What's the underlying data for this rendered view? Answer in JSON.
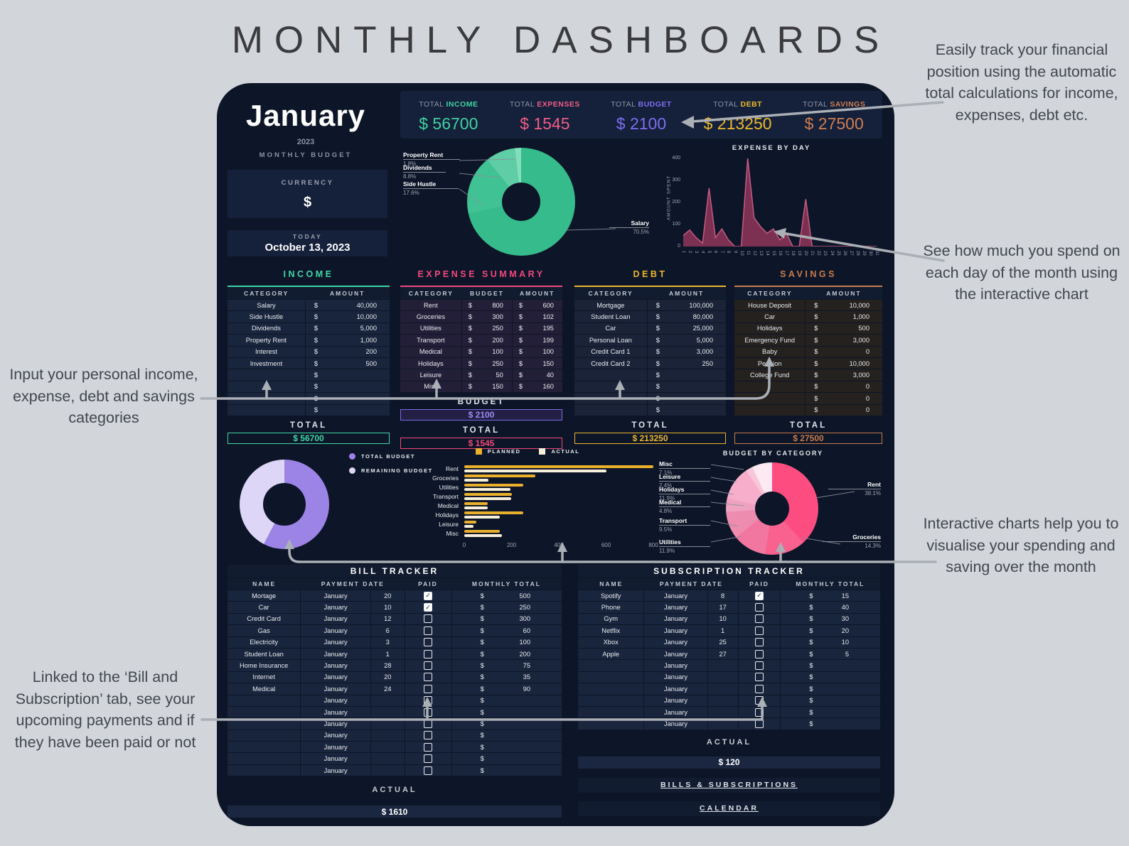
{
  "page": {
    "title": "MONTHLY DASHBOARDS"
  },
  "annotations": {
    "top_right": "Easily track your financial position using the automatic total calculations for income, expenses, debt etc.",
    "mid_right": "See how much you spend on each day of the month using the interactive chart",
    "bottom_right": "Interactive charts help you to visualise your spending and saving over the month",
    "mid_left": "Input your personal income, expense, debt and savings categories",
    "bottom_left": "Linked to the ‘Bill and Subscription’ tab, see your upcoming payments and if they have been paid or not"
  },
  "header": {
    "month": "January",
    "year": "2023",
    "subtitle": "MONTHLY BUDGET",
    "stats": [
      {
        "label_prefix": "TOTAL ",
        "label": "INCOME",
        "value": "$ 56700",
        "color": "#3fd3a0"
      },
      {
        "label_prefix": "TOTAL ",
        "label": "EXPENSES",
        "value": "$ 1545",
        "color": "#ef5d87"
      },
      {
        "label_prefix": "TOTAL ",
        "label": "BUDGET",
        "value": "$ 2100",
        "color": "#7d6ef0"
      },
      {
        "label_prefix": "TOTAL ",
        "label": "DEBT",
        "value": "$ 213250",
        "color": "#ecba2d"
      },
      {
        "label_prefix": "TOTAL ",
        "label": "SAVINGS",
        "value": "$ 27500",
        "color": "#cd7f52"
      }
    ]
  },
  "currency": {
    "label": "CURRENCY",
    "value": "$"
  },
  "today": {
    "label": "TODAY",
    "value": "October 13, 2023"
  },
  "income": {
    "title": "INCOME",
    "headers": [
      "CATEGORY",
      "AMOUNT"
    ],
    "rows": [
      {
        "category": "Salary",
        "amount": "40,000"
      },
      {
        "category": "Side Hustle",
        "amount": "10,000"
      },
      {
        "category": "Dividends",
        "amount": "5,000"
      },
      {
        "category": "Property Rent",
        "amount": "1,000"
      },
      {
        "category": "Interest",
        "amount": "200"
      },
      {
        "category": "Investment",
        "amount": "500"
      },
      {
        "category": "",
        "amount": ""
      },
      {
        "category": "",
        "amount": ""
      },
      {
        "category": "",
        "amount": ""
      },
      {
        "category": "",
        "amount": ""
      }
    ],
    "total_label": "TOTAL",
    "total": "$ 56700"
  },
  "expense": {
    "title": "EXPENSE SUMMARY",
    "headers": [
      "CATEGORY",
      "BUDGET",
      "AMOUNT"
    ],
    "rows": [
      {
        "category": "Rent",
        "budget": "800",
        "amount": "600"
      },
      {
        "category": "Groceries",
        "budget": "300",
        "amount": "102"
      },
      {
        "category": "Utilities",
        "budget": "250",
        "amount": "195"
      },
      {
        "category": "Transport",
        "budget": "200",
        "amount": "199"
      },
      {
        "category": "Medical",
        "budget": "100",
        "amount": "100"
      },
      {
        "category": "Holidays",
        "budget": "250",
        "amount": "150"
      },
      {
        "category": "Leisure",
        "budget": "50",
        "amount": "40"
      },
      {
        "category": "Misc",
        "budget": "150",
        "amount": "160"
      }
    ],
    "budget_label": "BUDGET",
    "budget": "$ 2100",
    "total_label": "TOTAL",
    "total": "$ 1545"
  },
  "debt": {
    "title": "DEBT",
    "headers": [
      "CATEGORY",
      "AMOUNT"
    ],
    "rows": [
      {
        "category": "Mortgage",
        "amount": "100,000"
      },
      {
        "category": "Student Loan",
        "amount": "80,000"
      },
      {
        "category": "Car",
        "amount": "25,000"
      },
      {
        "category": "Personal Loan",
        "amount": "5,000"
      },
      {
        "category": "Credit Card 1",
        "amount": "3,000"
      },
      {
        "category": "Credit Card 2",
        "amount": "250"
      },
      {
        "category": "",
        "amount": ""
      },
      {
        "category": "",
        "amount": ""
      },
      {
        "category": "",
        "amount": ""
      },
      {
        "category": "",
        "amount": ""
      }
    ],
    "total_label": "TOTAL",
    "total": "$ 213250"
  },
  "savings": {
    "title": "SAVINGS",
    "headers": [
      "CATEGORY",
      "AMOUNT"
    ],
    "rows": [
      {
        "category": "House Deposit",
        "amount": "10,000"
      },
      {
        "category": "Car",
        "amount": "1,000"
      },
      {
        "category": "Holidays",
        "amount": "500"
      },
      {
        "category": "Emergency Fund",
        "amount": "3,000"
      },
      {
        "category": "Baby",
        "amount": "0"
      },
      {
        "category": "Pension",
        "amount": "10,000"
      },
      {
        "category": "College Fund",
        "amount": "3,000"
      },
      {
        "category": "",
        "amount": "0"
      },
      {
        "category": "",
        "amount": "0"
      },
      {
        "category": "",
        "amount": "0"
      }
    ],
    "total_label": "TOTAL",
    "total": "$ 27500"
  },
  "chart_data": [
    {
      "type": "pie",
      "name": "income-breakdown",
      "slices": [
        {
          "label": "Salary",
          "pct": "70.5",
          "color": "#35bb8c"
        },
        {
          "label": "Side Hustle",
          "pct": "17.6",
          "color": "#41c295"
        },
        {
          "label": "Dividends",
          "pct": "8.8",
          "color": "#5fcda6"
        },
        {
          "label": "Property Rent",
          "pct": "1.8",
          "color": "#84ddbb"
        }
      ]
    },
    {
      "type": "area",
      "name": "expense-by-day",
      "title": "EXPENSE BY DAY",
      "ylabel": "AMOUNT SPENT",
      "x": [
        1,
        2,
        3,
        4,
        5,
        6,
        7,
        8,
        9,
        10,
        11,
        12,
        13,
        14,
        15,
        16,
        17,
        18,
        19,
        20,
        21,
        22,
        23,
        24,
        25,
        26,
        27,
        28,
        29,
        30,
        31
      ],
      "values": [
        50,
        75,
        40,
        15,
        265,
        40,
        80,
        30,
        0,
        0,
        400,
        130,
        90,
        60,
        80,
        30,
        60,
        0,
        0,
        215,
        0,
        0,
        0,
        0,
        0,
        0,
        0,
        0,
        0,
        0,
        0
      ],
      "ylim": [
        0,
        400
      ],
      "yticks": [
        0,
        100,
        200,
        300,
        400
      ],
      "fill": "#7c3153",
      "line": "#c25b82"
    },
    {
      "type": "pie",
      "name": "budget-overview",
      "legend": [
        "TOTAL BUDGET",
        "REMAINING BUDGET"
      ],
      "slices": [
        {
          "label": "TOTAL BUDGET",
          "pct": "57.6",
          "color": "#9c84e7"
        },
        {
          "label": "REMAINING BUDGET",
          "pct": "42.4",
          "color": "#ded6f6"
        }
      ]
    },
    {
      "type": "bar",
      "name": "planned-vs-actual",
      "legend": [
        "PLANNED",
        "ACTUAL"
      ],
      "legend_colors": [
        "#eab02c",
        "#f7efd9"
      ],
      "categories": [
        "Rent",
        "Groceries",
        "Utilities",
        "Transport",
        "Medical",
        "Holidays",
        "Leisure",
        "Misc"
      ],
      "series": [
        {
          "name": "PLANNED",
          "values": [
            800,
            300,
            250,
            200,
            100,
            250,
            50,
            150
          ]
        },
        {
          "name": "ACTUAL",
          "values": [
            600,
            102,
            195,
            199,
            100,
            150,
            40,
            160
          ]
        }
      ],
      "xlim": [
        0,
        800
      ],
      "xticks": [
        0,
        200,
        400,
        600,
        800
      ]
    },
    {
      "type": "pie",
      "name": "budget-by-category",
      "title": "BUDGET BY CATEGORY",
      "slices": [
        {
          "label": "Rent",
          "pct": "38.1",
          "color": "#fc4c80"
        },
        {
          "label": "Groceries",
          "pct": "14.3",
          "color": "#f9618f"
        },
        {
          "label": "Utilities",
          "pct": "11.9",
          "color": "#f277a0"
        },
        {
          "label": "Transport",
          "pct": "9.5",
          "color": "#ee8cb0"
        },
        {
          "label": "Medical",
          "pct": "4.8",
          "color": "#efa2c0"
        },
        {
          "label": "Holidays",
          "pct": "11.9",
          "color": "#f6aecb"
        },
        {
          "label": "Leisure",
          "pct": "2.4",
          "color": "#f9c6d9"
        },
        {
          "label": "Misc",
          "pct": "7.1",
          "color": "#fce9f1"
        }
      ]
    }
  ],
  "bill_tracker": {
    "title": "BILL TRACKER",
    "headers": [
      "NAME",
      "PAYMENT DATE",
      "PAID",
      "MONTHLY TOTAL"
    ],
    "rows": [
      {
        "name": "Mortage",
        "month": "January",
        "day": "20",
        "paid": true,
        "amount": "500"
      },
      {
        "name": "Car",
        "month": "January",
        "day": "10",
        "paid": true,
        "amount": "250"
      },
      {
        "name": "Credit Card",
        "month": "January",
        "day": "12",
        "paid": false,
        "amount": "300"
      },
      {
        "name": "Gas",
        "month": "January",
        "day": "6",
        "paid": false,
        "amount": "60"
      },
      {
        "name": "Electricity",
        "month": "January",
        "day": "3",
        "paid": false,
        "amount": "100"
      },
      {
        "name": "Student Loan",
        "month": "January",
        "day": "1",
        "paid": false,
        "amount": "200"
      },
      {
        "name": "Home Insurance",
        "month": "January",
        "day": "28",
        "paid": false,
        "amount": "75"
      },
      {
        "name": "Internet",
        "month": "January",
        "day": "20",
        "paid": false,
        "amount": "35"
      },
      {
        "name": "Medical",
        "month": "January",
        "day": "24",
        "paid": false,
        "amount": "90"
      },
      {
        "name": "",
        "month": "January",
        "day": "",
        "paid": false,
        "amount": ""
      },
      {
        "name": "",
        "month": "January",
        "day": "",
        "paid": false,
        "amount": ""
      },
      {
        "name": "",
        "month": "January",
        "day": "",
        "paid": false,
        "amount": ""
      },
      {
        "name": "",
        "month": "January",
        "day": "",
        "paid": false,
        "amount": ""
      },
      {
        "name": "",
        "month": "January",
        "day": "",
        "paid": false,
        "amount": ""
      },
      {
        "name": "",
        "month": "January",
        "day": "",
        "paid": false,
        "amount": ""
      },
      {
        "name": "",
        "month": "January",
        "day": "",
        "paid": false,
        "amount": ""
      }
    ],
    "actual_label": "ACTUAL",
    "actual": "$ 1610"
  },
  "subscription_tracker": {
    "title": "SUBSCRIPTION TRACKER",
    "headers": [
      "NAME",
      "PAYMENT DATE",
      "PAID",
      "MONTHLY TOTAL"
    ],
    "rows": [
      {
        "name": "Spotify",
        "month": "January",
        "day": "8",
        "paid": true,
        "amount": "15"
      },
      {
        "name": "Phone",
        "month": "January",
        "day": "17",
        "paid": false,
        "amount": "40"
      },
      {
        "name": "Gym",
        "month": "January",
        "day": "10",
        "paid": false,
        "amount": "30"
      },
      {
        "name": "Netflix",
        "month": "January",
        "day": "1",
        "paid": false,
        "amount": "20"
      },
      {
        "name": "Xbox",
        "month": "January",
        "day": "25",
        "paid": false,
        "amount": "10"
      },
      {
        "name": "Apple",
        "month": "January",
        "day": "27",
        "paid": false,
        "amount": "5"
      },
      {
        "name": "",
        "month": "January",
        "day": "",
        "paid": false,
        "amount": ""
      },
      {
        "name": "",
        "month": "January",
        "day": "",
        "paid": false,
        "amount": ""
      },
      {
        "name": "",
        "month": "January",
        "day": "",
        "paid": false,
        "amount": ""
      },
      {
        "name": "",
        "month": "January",
        "day": "",
        "paid": false,
        "amount": ""
      },
      {
        "name": "",
        "month": "January",
        "day": "",
        "paid": false,
        "amount": ""
      },
      {
        "name": "",
        "month": "January",
        "day": "",
        "paid": false,
        "amount": ""
      }
    ],
    "actual_label": "ACTUAL",
    "actual": "$ 120",
    "links": [
      "BILLS & SUBSCRIPTIONS",
      "CALENDAR"
    ]
  }
}
